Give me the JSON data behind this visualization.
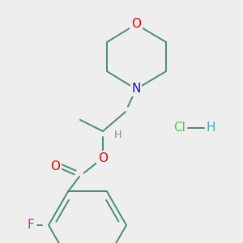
{
  "background_color": "#eeeeee",
  "bond_color": "#4a8a7a",
  "bond_lw": 1.4,
  "atom_colors": {
    "O": "#ee0000",
    "N": "#1111dd",
    "F": "#bb33bb",
    "Cl": "#44cc44",
    "H_hcl": "#44aaaa",
    "H_stereo": "#888888"
  },
  "font_size": 10
}
